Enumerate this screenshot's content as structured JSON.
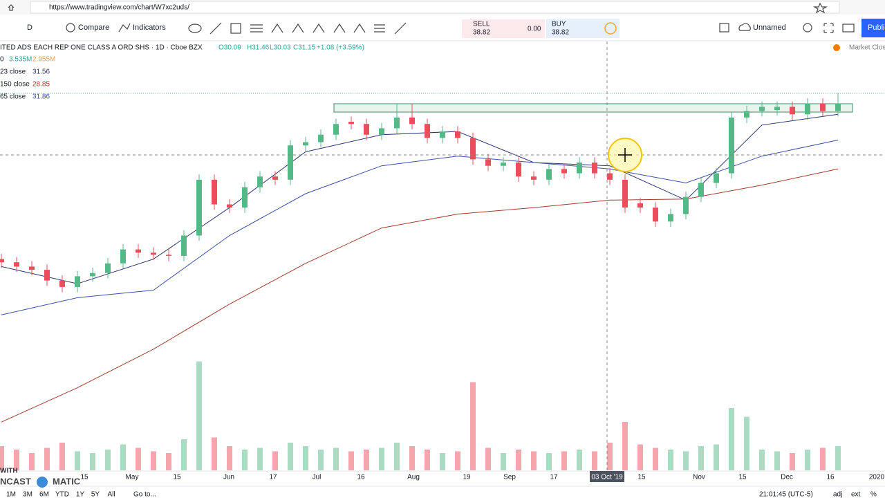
{
  "browser": {
    "url": "https://www.tradingview.com/chart/W7xc2uds/"
  },
  "toolbar": {
    "interval": "D",
    "compare": "Compare",
    "indicators": "Indicators",
    "sell_label": "SELL",
    "sell_price": "38.82",
    "spread": "0.00",
    "buy_label": "BUY",
    "buy_price": "38.82",
    "layout_name": "Unnamed",
    "publish": "Publi"
  },
  "symbol": {
    "name": "ITED ADS EACH REP ONE CLASS A ORD SHS · 1D · Cboe BZX",
    "open": "O30.09",
    "high": "H31.46",
    "low": "L30.03",
    "close": "C31.15",
    "change": "+1.08 (+3.59%)",
    "market_status": "Market Close"
  },
  "chart_data": {
    "type": "candlestick",
    "ylim": [
      3.7,
      42.4
    ],
    "up_color": "#53b987",
    "down_color": "#eb4d5c",
    "candles": {
      "open": [
        23.4,
        23.1,
        22.7,
        22.4,
        21.4,
        20.8,
        21.8,
        22.1,
        23.0,
        24.3,
        24.0,
        23.8,
        23.7,
        25.6,
        30.8,
        28.5,
        28.2,
        30.1,
        31.1,
        30.8,
        34.0,
        34.3,
        35.0,
        36.2,
        36.0,
        35.0,
        35.6,
        36.6,
        36.0,
        34.7,
        35.3,
        34.7,
        32.7,
        32.1,
        32.4,
        31.1,
        30.8,
        31.8,
        31.4,
        32.4,
        31.4,
        30.8,
        28.6,
        28.2,
        26.9,
        27.6,
        29.2,
        30.5,
        31.4,
        36.6,
        37.2,
        37.3,
        37.6,
        36.9,
        37.9,
        37.2
      ],
      "high": [
        23.9,
        23.6,
        23.2,
        22.9,
        21.9,
        22.3,
        22.6,
        23.5,
        24.8,
        24.8,
        24.5,
        24.3,
        26.1,
        31.3,
        31.3,
        29.0,
        30.6,
        31.6,
        31.6,
        34.5,
        34.8,
        35.5,
        36.5,
        36.7,
        36.5,
        36.1,
        37.9,
        37.9,
        36.5,
        35.8,
        35.8,
        35.2,
        33.2,
        32.9,
        32.9,
        31.6,
        32.3,
        32.3,
        32.9,
        32.9,
        31.9,
        31.3,
        29.1,
        28.7,
        28.1,
        29.7,
        31.0,
        31.9,
        37.1,
        37.7,
        38.1,
        38.1,
        38.1,
        38.4,
        38.4,
        38.9
      ],
      "low": [
        22.6,
        22.2,
        21.9,
        20.9,
        20.3,
        20.3,
        21.3,
        21.6,
        22.5,
        23.5,
        23.3,
        23.2,
        23.2,
        25.1,
        28.0,
        27.7,
        27.7,
        29.6,
        30.3,
        30.3,
        33.5,
        33.8,
        34.5,
        35.5,
        34.5,
        34.5,
        35.1,
        35.5,
        34.2,
        34.2,
        34.2,
        32.2,
        31.6,
        31.6,
        30.6,
        30.3,
        30.3,
        30.9,
        30.9,
        30.9,
        30.3,
        27.7,
        27.7,
        26.4,
        26.4,
        27.1,
        28.7,
        30.0,
        30.9,
        36.1,
        36.7,
        36.8,
        36.4,
        36.4,
        36.7,
        36.7
      ],
      "close": [
        23.1,
        22.7,
        22.4,
        21.4,
        20.8,
        21.8,
        22.1,
        23.0,
        24.3,
        24.0,
        23.8,
        23.7,
        25.6,
        30.8,
        28.5,
        28.2,
        30.1,
        31.1,
        30.8,
        34.0,
        34.3,
        35.0,
        36.0,
        36.0,
        35.0,
        35.6,
        36.6,
        36.0,
        34.7,
        35.3,
        34.7,
        32.7,
        32.1,
        32.4,
        31.1,
        30.8,
        31.8,
        31.4,
        32.4,
        31.4,
        30.8,
        28.2,
        28.2,
        26.9,
        27.6,
        29.2,
        30.5,
        31.4,
        36.6,
        37.2,
        37.6,
        37.6,
        36.9,
        37.9,
        37.2,
        37.9
      ]
    },
    "series": [
      {
        "name": "23 close",
        "legend_value": "31.56",
        "color": "#2a3470",
        "values": [
          22.7,
          21.1,
          23.4,
          28.2,
          33.4,
          35.0,
          35.3,
          32.4,
          32.1,
          28.9,
          35.9,
          36.9
        ]
      },
      {
        "name": "150 close",
        "legend_value": "28.85",
        "color": "#a23a2c",
        "values": [
          8.2,
          11.4,
          15.0,
          19.2,
          23.0,
          26.3,
          27.6,
          28.2,
          28.9,
          29.0,
          30.3,
          31.8
        ]
      },
      {
        "name": "65 close",
        "legend_value": "31.86",
        "color": "#3b4fa8",
        "values": [
          18.2,
          19.8,
          20.5,
          25.6,
          29.5,
          32.1,
          33.0,
          32.4,
          31.8,
          30.5,
          33.0,
          34.5
        ]
      }
    ],
    "volume": {
      "label": "0",
      "legend_values": [
        "3.535M",
        "2.955M"
      ],
      "ylim": [
        0,
        8
      ],
      "values": [
        1.4,
        1.2,
        1.0,
        1.3,
        1.6,
        1.1,
        1.0,
        1.2,
        1.5,
        1.3,
        1.1,
        1.0,
        1.8,
        6.3,
        1.9,
        1.4,
        1.2,
        1.3,
        1.1,
        1.6,
        1.4,
        1.2,
        1.3,
        1.1,
        1.2,
        1.3,
        1.6,
        1.4,
        1.2,
        1.0,
        1.1,
        5.1,
        1.3,
        1.0,
        1.2,
        1.1,
        1.0,
        1.1,
        1.2,
        1.1,
        1.6,
        2.8,
        1.5,
        1.3,
        1.2,
        1.1,
        1.4,
        1.5,
        3.6,
        3.1,
        1.2,
        1.1,
        1.0,
        1.2,
        1.3,
        1.4
      ]
    },
    "x_labels": [
      "15",
      "May",
      "15",
      "Jun",
      "17",
      "Jul",
      "16",
      "Aug",
      "19",
      "Sep",
      "17",
      "03 Oct '19",
      "15",
      "Nov",
      "15",
      "Dec",
      "16",
      "2020"
    ]
  },
  "bottom_bar": {
    "ranges": [
      "1M",
      "3M",
      "6M",
      "YTD",
      "1Y",
      "5Y",
      "All"
    ],
    "goto": "Go to...",
    "clock": "21:01:45 (UTC-5)",
    "adj": "adj",
    "ext": "ext",
    "percent": "%"
  },
  "watermark": {
    "top": "WITH",
    "left": "NCAST",
    "right": "MATIC"
  }
}
